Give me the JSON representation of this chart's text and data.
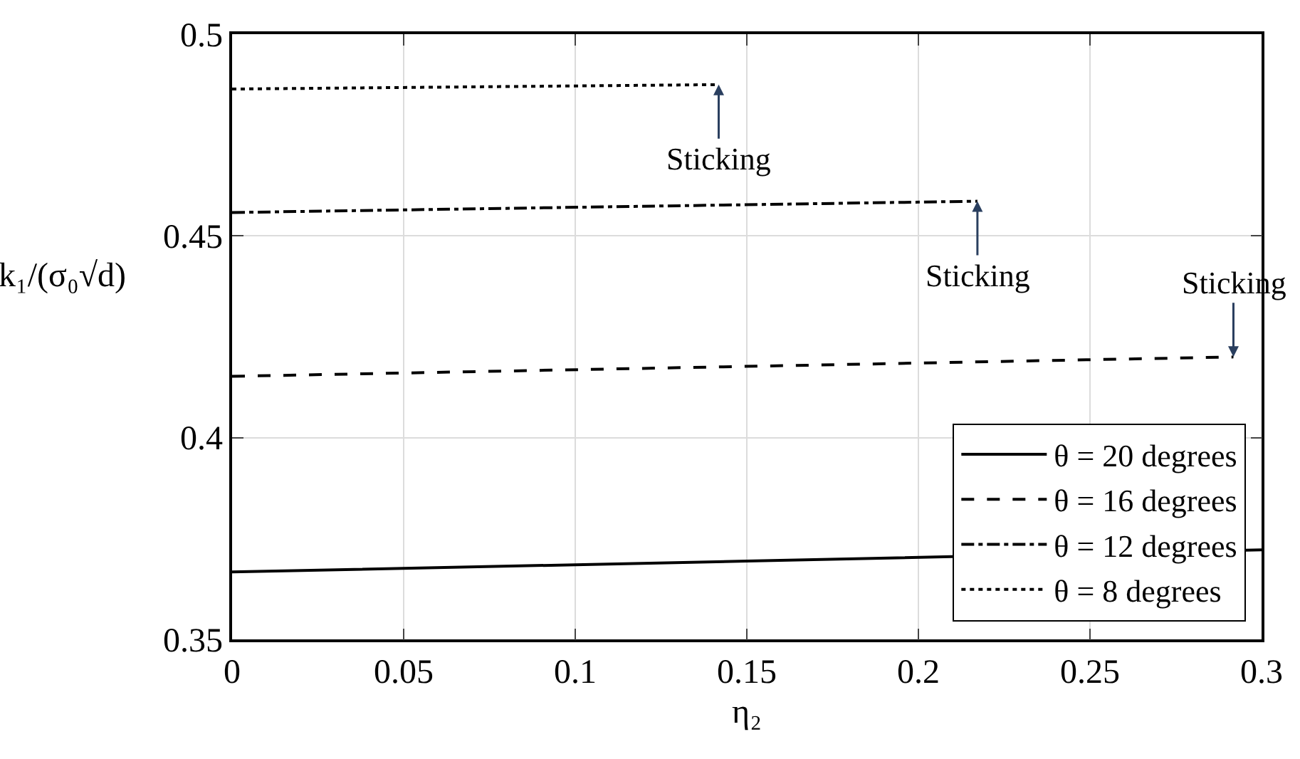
{
  "chart_data": {
    "type": "line",
    "xlabel": "η₂",
    "ylabel": "k₁/(σ₀√d)",
    "xlim": [
      0,
      0.3
    ],
    "xticks": [
      0,
      0.05,
      0.1,
      0.15,
      0.2,
      0.25,
      0.3
    ],
    "ylim": [
      0.35,
      0.5
    ],
    "yticks": [
      0.35,
      0.4,
      0.45,
      0.5
    ],
    "grid": true,
    "legend": "bottom right",
    "marker": "none",
    "series": [
      {
        "name": "θ = 20 degrees",
        "color": "#000000",
        "line_style": "solid",
        "x": [
          0,
          0.1,
          0.15,
          0.3
        ],
        "values": [
          0.3667,
          0.3685,
          0.3694,
          0.3722
        ]
      },
      {
        "name": "θ = 16 degrees",
        "color": "#000000",
        "line_style": "dashed",
        "x": [
          0,
          0.2918
        ],
        "values": [
          0.4152,
          0.42
        ]
      },
      {
        "name": "θ = 12 degrees",
        "color": "#000000",
        "line_style": "dashdot",
        "x": [
          0,
          0.2172
        ],
        "values": [
          0.4558,
          0.4586
        ]
      },
      {
        "name": "θ = 8 degrees",
        "color": "#000000",
        "line_style": "dotted",
        "x": [
          0,
          0.1418
        ],
        "values": [
          0.4864,
          0.4875
        ]
      }
    ],
    "annotations": [
      {
        "text": "Sticking",
        "x": 0.1418,
        "y": 0.4875
      },
      {
        "text": "Sticking",
        "x": 0.2172,
        "y": 0.4586
      },
      {
        "text": "Sticking",
        "x": 0.2918,
        "y": 0.42
      }
    ]
  }
}
